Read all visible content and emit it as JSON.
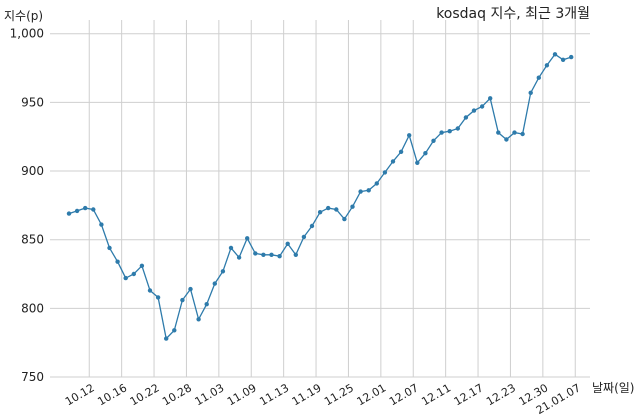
{
  "chart_data": {
    "type": "line",
    "title": "kosdaq 지수, 최근 3개월",
    "ylabel": "지수(p)",
    "xlabel": "날짜(일)",
    "ylim": [
      750,
      1010
    ],
    "yticks": [
      750,
      800,
      850,
      900,
      950,
      1000
    ],
    "ytick_labels": [
      "750",
      "800",
      "850",
      "900",
      "950",
      "1,000"
    ],
    "grid": true,
    "line_color": "#2e7bab",
    "x_tick_labels": [
      "10.12",
      "10.16",
      "10.22",
      "10.28",
      "11.03",
      "11.09",
      "11.13",
      "11.19",
      "11.25",
      "12.01",
      "12.07",
      "12.11",
      "12.17",
      "12.23",
      "12.30",
      "21.01.07"
    ],
    "x_tick_positions": [
      2.5,
      6.5,
      10.5,
      14.5,
      18.5,
      22.5,
      26.5,
      30.5,
      34.5,
      38.5,
      42.5,
      46.5,
      50.5,
      54.5,
      58.5,
      62.5
    ],
    "series": [
      {
        "values": [
          869,
          871,
          873,
          872,
          861,
          844,
          834,
          822,
          825,
          831,
          813,
          808,
          778,
          784,
          806,
          814,
          792,
          803,
          818,
          827,
          844,
          837,
          851,
          840,
          839,
          839,
          838,
          847,
          839,
          852,
          860,
          870,
          873,
          872,
          865,
          874,
          885,
          886,
          891,
          899,
          907,
          914,
          926,
          906,
          913,
          922,
          928,
          929,
          931,
          939,
          944,
          947,
          953,
          928,
          923,
          928,
          927,
          957,
          968,
          977,
          985,
          981,
          983
        ]
      }
    ]
  }
}
